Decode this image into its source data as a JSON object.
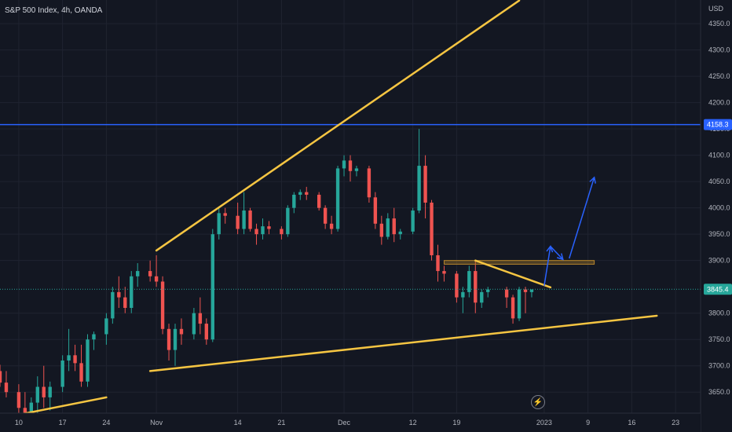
{
  "header": {
    "symbol_title": "S&P 500 Index, 4h, OANDA",
    "currency": "USD"
  },
  "chart_data": {
    "type": "candlestick",
    "title": "S&P 500 Index, 4h, OANDA",
    "y_unit": "USD",
    "ylim": [
      3610,
      4395
    ],
    "xlim": [
      "2022-10-07",
      "2023-01-27"
    ],
    "y_ticks": [
      "4350.0",
      "4300.0",
      "4250.0",
      "4200.0",
      "4150.0",
      "4100.0",
      "4050.0",
      "4000.0",
      "3950.0",
      "3900.0",
      "3800.0",
      "3750.0",
      "3700.0",
      "3650.0"
    ],
    "x_ticks": [
      {
        "date": "2022-10-10",
        "label": "10"
      },
      {
        "date": "2022-10-17",
        "label": "17"
      },
      {
        "date": "2022-10-24",
        "label": "24"
      },
      {
        "date": "2022-11-01",
        "label": "Nov"
      },
      {
        "date": "2022-11-14",
        "label": "14"
      },
      {
        "date": "2022-11-21",
        "label": "21"
      },
      {
        "date": "2022-12-01",
        "label": "Dec"
      },
      {
        "date": "2022-12-12",
        "label": "12"
      },
      {
        "date": "2022-12-19",
        "label": "19"
      },
      {
        "date": "2023-01-02",
        "label": "2023"
      },
      {
        "date": "2023-01-09",
        "label": "9"
      },
      {
        "date": "2023-01-16",
        "label": "16"
      },
      {
        "date": "2023-01-23",
        "label": "23"
      }
    ],
    "price_tags": [
      {
        "value": 4158.3,
        "label": "4158.3",
        "color": "#2962ff",
        "text_color": "#ffffff"
      },
      {
        "value": 3845.4,
        "label": "3845.4",
        "color": "#26a69a",
        "text_color": "#ffffff"
      }
    ],
    "horizontal_lines": [
      {
        "value": 4158.3,
        "color": "#2962ff",
        "style": "solid"
      },
      {
        "value": 3845.4,
        "color": "#26a69a",
        "style": "dotted"
      }
    ],
    "trend_lines": [
      {
        "from": [
          "2022-10-07",
          3600.0
        ],
        "to": [
          "2022-10-24",
          3640.0
        ],
        "color": "#f5c542"
      },
      {
        "from": [
          "2022-11-01",
          3919.0
        ],
        "to": [
          "2022-12-29",
          4394.0
        ],
        "color": "#f5c542"
      },
      {
        "from": [
          "2022-10-31",
          3690.0
        ],
        "to": [
          "2023-01-20",
          3795.0
        ],
        "color": "#f5c542"
      },
      {
        "from": [
          "2022-12-22",
          3900.0
        ],
        "to": [
          "2023-01-03",
          3849.0
        ],
        "color": "#f5c542"
      }
    ],
    "zones": [
      {
        "from": [
          "2022-12-17",
          3900.0
        ],
        "to": [
          "2023-01-10",
          3893.0
        ],
        "color": "#b8862b"
      }
    ],
    "arrows": [
      {
        "points": [
          [
            "2023-01-02",
            3852.0
          ],
          [
            "2023-01-03",
            3927.0
          ]
        ],
        "color": "#2962ff"
      },
      {
        "points": [
          [
            "2023-01-03",
            3927.0
          ],
          [
            "2023-01-05",
            3902.0
          ]
        ],
        "color": "#2962ff"
      },
      {
        "points": [
          [
            "2023-01-06",
            3904.0
          ],
          [
            "2023-01-10",
            4058.0
          ]
        ],
        "color": "#2962ff"
      }
    ],
    "candles": [
      [
        "2022-10-07",
        3690,
        3702,
        3660,
        3668
      ],
      [
        "2022-10-08",
        3668,
        3690,
        3640,
        3650
      ],
      [
        "2022-10-10",
        3650,
        3665,
        3610,
        3620
      ],
      [
        "2022-10-11",
        3620,
        3650,
        3590,
        3600
      ],
      [
        "2022-10-12",
        3600,
        3640,
        3580,
        3630
      ],
      [
        "2022-10-13",
        3630,
        3680,
        3560,
        3660
      ],
      [
        "2022-10-14",
        3660,
        3700,
        3620,
        3640
      ],
      [
        "2022-10-15",
        3640,
        3670,
        3615,
        3660
      ],
      [
        "2022-10-17",
        3660,
        3720,
        3650,
        3710
      ],
      [
        "2022-10-18",
        3710,
        3770,
        3690,
        3720
      ],
      [
        "2022-10-19",
        3720,
        3740,
        3690,
        3705
      ],
      [
        "2022-10-20",
        3705,
        3740,
        3660,
        3670
      ],
      [
        "2022-10-21",
        3670,
        3760,
        3660,
        3750
      ],
      [
        "2022-10-22",
        3750,
        3765,
        3730,
        3760
      ],
      [
        "2022-10-24",
        3760,
        3800,
        3740,
        3790
      ],
      [
        "2022-10-25",
        3790,
        3850,
        3780,
        3840
      ],
      [
        "2022-10-26",
        3840,
        3870,
        3810,
        3830
      ],
      [
        "2022-10-27",
        3830,
        3850,
        3800,
        3810
      ],
      [
        "2022-10-28",
        3810,
        3880,
        3800,
        3870
      ],
      [
        "2022-10-29",
        3870,
        3895,
        3850,
        3880
      ],
      [
        "2022-10-31",
        3880,
        3900,
        3860,
        3870
      ],
      [
        "2022-11-01",
        3870,
        3910,
        3850,
        3860
      ],
      [
        "2022-11-02",
        3860,
        3870,
        3760,
        3770
      ],
      [
        "2022-11-03",
        3770,
        3780,
        3710,
        3730
      ],
      [
        "2022-11-04",
        3730,
        3780,
        3700,
        3770
      ],
      [
        "2022-11-05",
        3770,
        3790,
        3740,
        3760
      ],
      [
        "2022-11-07",
        3760,
        3810,
        3750,
        3800
      ],
      [
        "2022-11-08",
        3800,
        3830,
        3760,
        3780
      ],
      [
        "2022-11-09",
        3780,
        3790,
        3740,
        3750
      ],
      [
        "2022-11-10",
        3750,
        3960,
        3745,
        3950
      ],
      [
        "2022-11-11",
        3950,
        4000,
        3940,
        3990
      ],
      [
        "2022-11-12",
        3990,
        4000,
        3970,
        3985
      ],
      [
        "2022-11-14",
        3985,
        4010,
        3950,
        3960
      ],
      [
        "2022-11-15",
        3960,
        4030,
        3950,
        3995
      ],
      [
        "2022-11-16",
        3995,
        4000,
        3955,
        3960
      ],
      [
        "2022-11-17",
        3960,
        3970,
        3930,
        3950
      ],
      [
        "2022-11-18",
        3950,
        3980,
        3940,
        3965
      ],
      [
        "2022-11-19",
        3965,
        3975,
        3950,
        3960
      ],
      [
        "2022-11-21",
        3960,
        3965,
        3940,
        3950
      ],
      [
        "2022-11-22",
        3950,
        4005,
        3945,
        4000
      ],
      [
        "2022-11-23",
        4000,
        4030,
        3990,
        4025
      ],
      [
        "2022-11-24",
        4025,
        4035,
        4015,
        4030
      ],
      [
        "2022-11-25",
        4030,
        4040,
        4015,
        4025
      ],
      [
        "2022-11-27",
        4025,
        4030,
        3995,
        4000
      ],
      [
        "2022-11-28",
        4000,
        4005,
        3960,
        3970
      ],
      [
        "2022-11-29",
        3970,
        3985,
        3950,
        3960
      ],
      [
        "2022-11-30",
        3960,
        4080,
        3955,
        4075
      ],
      [
        "2022-12-01",
        4075,
        4100,
        4060,
        4090
      ],
      [
        "2022-12-02",
        4090,
        4100,
        4050,
        4070
      ],
      [
        "2022-12-03",
        4070,
        4080,
        4060,
        4075
      ],
      [
        "2022-12-05",
        4075,
        4080,
        4010,
        4020
      ],
      [
        "2022-12-06",
        4020,
        4030,
        3960,
        3970
      ],
      [
        "2022-12-07",
        3970,
        3985,
        3930,
        3945
      ],
      [
        "2022-12-08",
        3945,
        3990,
        3940,
        3980
      ],
      [
        "2022-12-09",
        3980,
        4000,
        3935,
        3950
      ],
      [
        "2022-12-10",
        3950,
        3960,
        3940,
        3955
      ],
      [
        "2022-12-12",
        3955,
        4000,
        3950,
        3995
      ],
      [
        "2022-12-13",
        3995,
        4150,
        3990,
        4080
      ],
      [
        "2022-12-14",
        4080,
        4100,
        3980,
        4010
      ],
      [
        "2022-12-15",
        4010,
        4015,
        3900,
        3910
      ],
      [
        "2022-12-16",
        3910,
        3930,
        3860,
        3880
      ],
      [
        "2022-12-17",
        3880,
        3890,
        3860,
        3875
      ],
      [
        "2022-12-19",
        3875,
        3880,
        3820,
        3830
      ],
      [
        "2022-12-20",
        3830,
        3850,
        3800,
        3840
      ],
      [
        "2022-12-21",
        3840,
        3890,
        3830,
        3880
      ],
      [
        "2022-12-22",
        3880,
        3900,
        3800,
        3820
      ],
      [
        "2022-12-23",
        3820,
        3845,
        3810,
        3840
      ],
      [
        "2022-12-24",
        3840,
        3850,
        3830,
        3845
      ],
      [
        "2022-12-27",
        3845,
        3850,
        3810,
        3830
      ],
      [
        "2022-12-28",
        3830,
        3835,
        3780,
        3790
      ],
      [
        "2022-12-29",
        3790,
        3850,
        3785,
        3845
      ],
      [
        "2022-12-30",
        3845,
        3850,
        3800,
        3840
      ],
      [
        "2022-12-31",
        3840,
        3845,
        3830,
        3845
      ]
    ]
  }
}
